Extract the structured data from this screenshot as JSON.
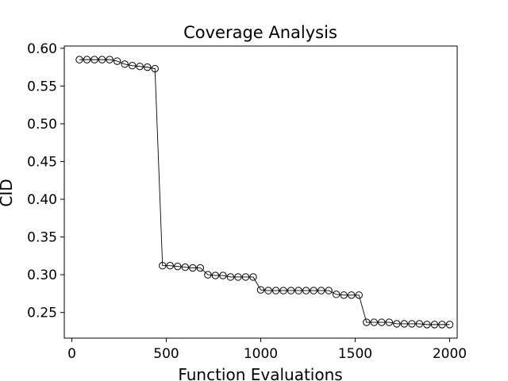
{
  "chart_data": {
    "type": "line",
    "title": "Coverage Analysis",
    "xlabel": "Function Evaluations",
    "ylabel": "CID",
    "xlim": [
      -40,
      2040
    ],
    "ylim": [
      0.216,
      0.603
    ],
    "xticks": [
      0,
      500,
      1000,
      1500,
      2000
    ],
    "yticks": [
      0.25,
      0.3,
      0.35,
      0.4,
      0.45,
      0.5,
      0.55,
      0.6
    ],
    "xtick_labels": [
      "0",
      "500",
      "1000",
      "1500",
      "2000"
    ],
    "ytick_labels": [
      "0.25",
      "0.30",
      "0.35",
      "0.40",
      "0.45",
      "0.50",
      "0.55",
      "0.60"
    ],
    "grid": false,
    "marker": "open-circle",
    "line_color": "#000000",
    "series": [
      {
        "x": [
          40,
          80,
          120,
          160,
          200,
          240,
          280,
          320,
          360,
          400,
          440,
          480,
          520,
          560,
          600,
          640,
          680,
          720,
          760,
          800,
          840,
          880,
          920,
          960,
          1000,
          1040,
          1080,
          1120,
          1160,
          1200,
          1240,
          1280,
          1320,
          1360,
          1400,
          1440,
          1480,
          1520,
          1560,
          1600,
          1640,
          1680,
          1720,
          1760,
          1800,
          1840,
          1880,
          1920,
          1960,
          2000
        ],
        "y": [
          0.585,
          0.585,
          0.585,
          0.585,
          0.585,
          0.583,
          0.579,
          0.577,
          0.576,
          0.575,
          0.573,
          0.312,
          0.312,
          0.311,
          0.31,
          0.309,
          0.309,
          0.3,
          0.299,
          0.299,
          0.297,
          0.297,
          0.297,
          0.297,
          0.28,
          0.279,
          0.279,
          0.279,
          0.279,
          0.279,
          0.279,
          0.279,
          0.279,
          0.279,
          0.274,
          0.273,
          0.273,
          0.273,
          0.237,
          0.237,
          0.237,
          0.237,
          0.235,
          0.235,
          0.235,
          0.235,
          0.234,
          0.234,
          0.234,
          0.234
        ]
      }
    ]
  }
}
